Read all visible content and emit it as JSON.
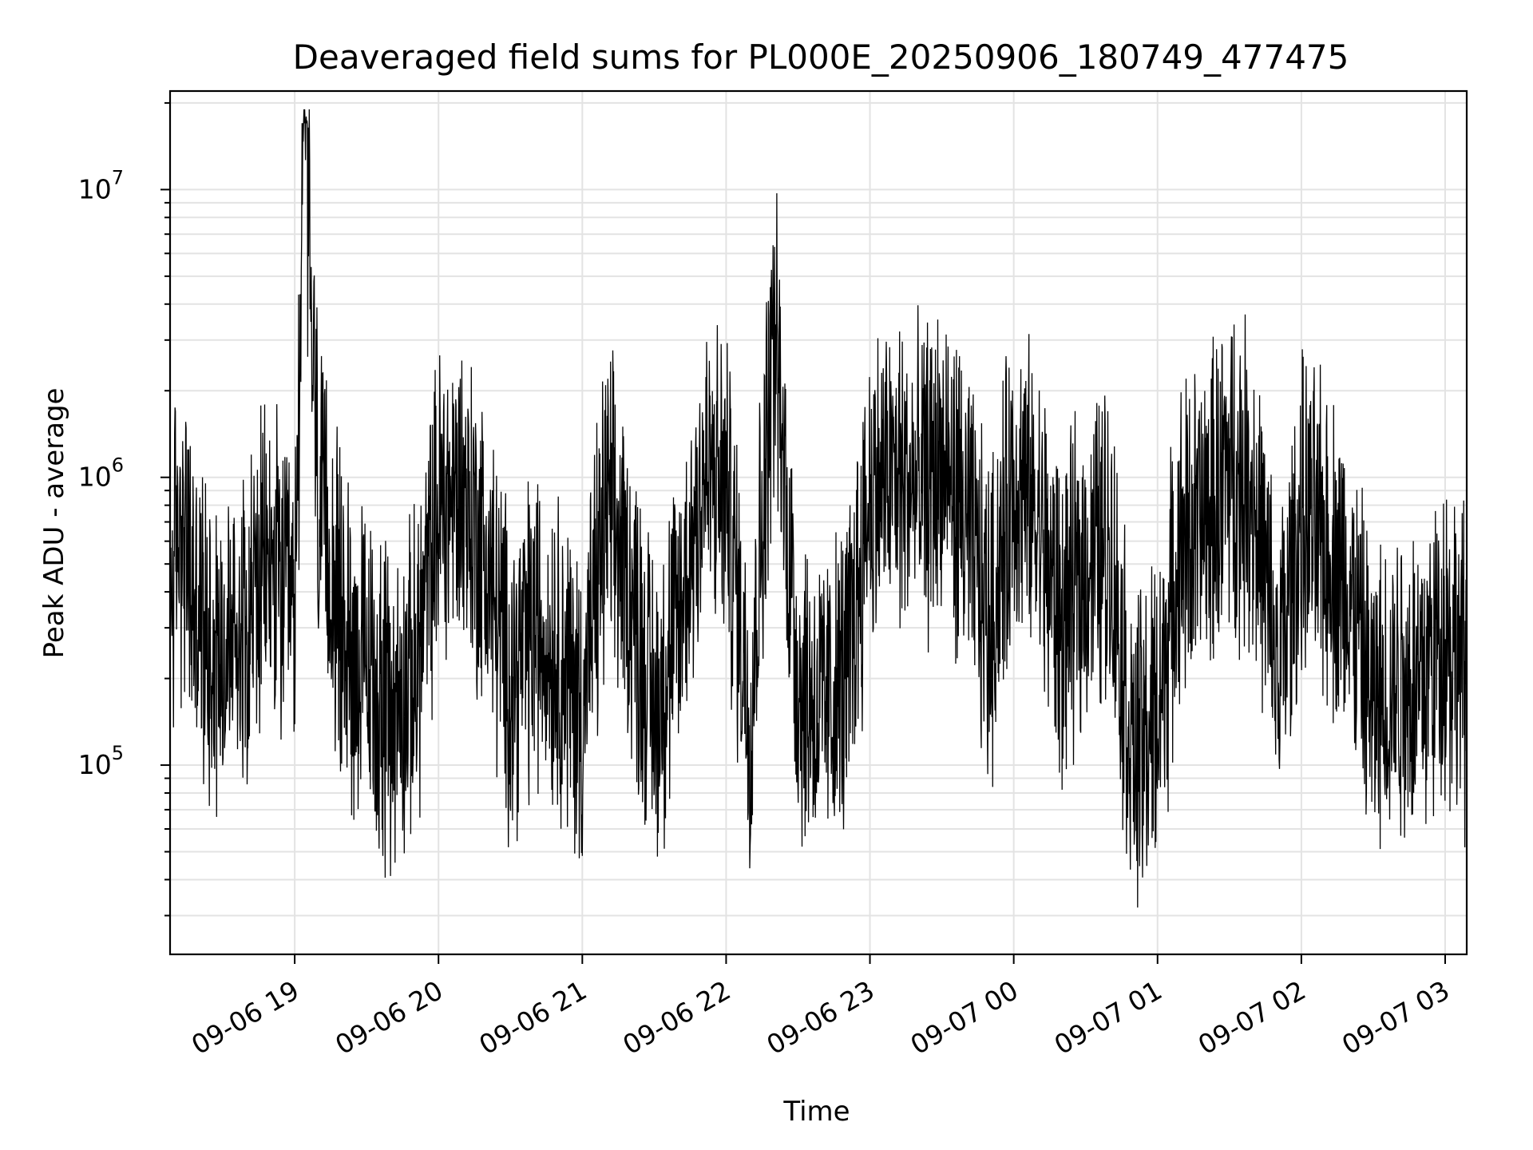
{
  "chart_data": {
    "type": "line",
    "title": "Deaveraged field sums for PL000E_20250906_180749_477475",
    "xlabel": "Time",
    "ylabel": "Peak ADU - average",
    "yscale": "log",
    "grid": true,
    "legend": "none",
    "xlim": [
      "2025-09-06 18:08",
      "2025-09-07 03:09"
    ],
    "ylim": [
      22000,
      22000000
    ],
    "x_ticks": [
      {
        "value": "2025-09-06 19:00",
        "label": "09-06 19"
      },
      {
        "value": "2025-09-06 20:00",
        "label": "09-06 20"
      },
      {
        "value": "2025-09-06 21:00",
        "label": "09-06 21"
      },
      {
        "value": "2025-09-06 22:00",
        "label": "09-06 22"
      },
      {
        "value": "2025-09-06 23:00",
        "label": "09-06 23"
      },
      {
        "value": "2025-09-07 00:00",
        "label": "09-07 00"
      },
      {
        "value": "2025-09-07 01:00",
        "label": "09-07 01"
      },
      {
        "value": "2025-09-07 02:00",
        "label": "09-07 02"
      },
      {
        "value": "2025-09-07 03:00",
        "label": "09-07 03"
      }
    ],
    "y_ticks": [
      {
        "value": 100000,
        "base": "10",
        "exp": "5"
      },
      {
        "value": 1000000,
        "base": "10",
        "exp": "6"
      },
      {
        "value": 10000000,
        "base": "10",
        "exp": "7"
      }
    ],
    "colors": {
      "line": "#000000",
      "grid": "#e3e3e3",
      "background": "#ffffff"
    },
    "series": [
      {
        "values_approx": {
          "x": [
            "2025-09-06 18:08",
            "2025-09-06 18:12",
            "2025-09-06 18:20",
            "2025-09-06 18:30",
            "2025-09-06 18:40",
            "2025-09-06 18:50",
            "2025-09-06 19:00",
            "2025-09-06 19:04",
            "2025-09-06 19:10",
            "2025-09-06 19:20",
            "2025-09-06 19:30",
            "2025-09-06 19:40",
            "2025-09-06 19:50",
            "2025-09-06 20:00",
            "2025-09-06 20:10",
            "2025-09-06 20:20",
            "2025-09-06 20:30",
            "2025-09-06 20:40",
            "2025-09-06 20:50",
            "2025-09-06 21:00",
            "2025-09-06 21:10",
            "2025-09-06 21:20",
            "2025-09-06 21:30",
            "2025-09-06 21:40",
            "2025-09-06 21:50",
            "2025-09-06 22:00",
            "2025-09-06 22:10",
            "2025-09-06 22:20",
            "2025-09-06 22:30",
            "2025-09-06 22:40",
            "2025-09-06 22:50",
            "2025-09-06 23:00",
            "2025-09-06 23:10",
            "2025-09-06 23:20",
            "2025-09-06 23:30",
            "2025-09-06 23:40",
            "2025-09-06 23:50",
            "2025-09-07 00:00",
            "2025-09-07 00:10",
            "2025-09-07 00:20",
            "2025-09-07 00:30",
            "2025-09-07 00:40",
            "2025-09-07 00:50",
            "2025-09-07 01:00",
            "2025-09-07 01:10",
            "2025-09-07 01:20",
            "2025-09-07 01:30",
            "2025-09-07 01:40",
            "2025-09-07 01:50",
            "2025-09-07 02:00",
            "2025-09-07 02:10",
            "2025-09-07 02:20",
            "2025-09-07 02:30",
            "2025-09-07 02:40",
            "2025-09-07 02:50",
            "2025-09-07 03:00",
            "2025-09-07 03:09"
          ],
          "y": [
            400000,
            700000,
            300000,
            250000,
            350000,
            500000,
            300000,
            17000000,
            800000,
            300000,
            200000,
            150000,
            200000,
            800000,
            900000,
            500000,
            200000,
            300000,
            250000,
            150000,
            800000,
            400000,
            150000,
            300000,
            1000000,
            900000,
            150000,
            3400000,
            200000,
            150000,
            200000,
            900000,
            1000000,
            900000,
            1100000,
            700000,
            300000,
            1000000,
            700000,
            300000,
            500000,
            600000,
            100000,
            150000,
            600000,
            700000,
            1100000,
            900000,
            200000,
            700000,
            600000,
            400000,
            150000,
            200000,
            200000,
            300000,
            200000
          ]
        }
      }
    ]
  }
}
